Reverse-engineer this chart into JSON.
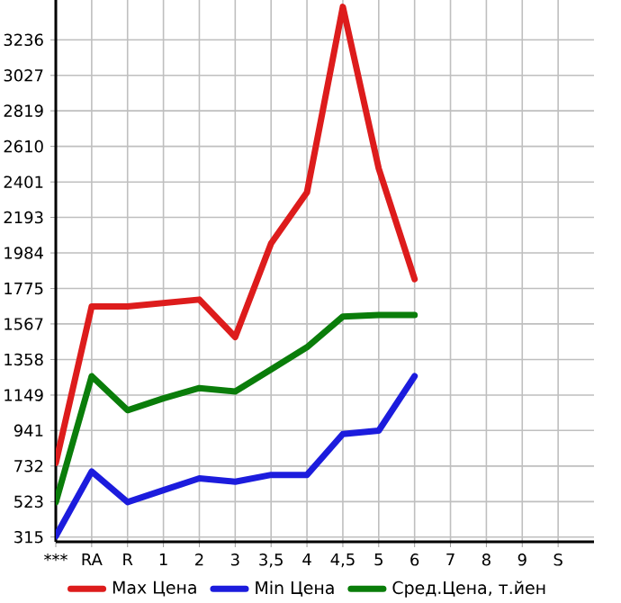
{
  "chart_data": {
    "type": "line",
    "categories": [
      "***",
      "RA",
      "R",
      "1",
      "2",
      "3",
      "3,5",
      "4",
      "4,5",
      "5",
      "6",
      "7",
      "8",
      "9",
      "S"
    ],
    "series": [
      {
        "name": "Max Цена",
        "color": "#dd1c1c",
        "values": [
          750,
          1670,
          1670,
          1690,
          1710,
          1490,
          2040,
          2340,
          3430,
          2480,
          1830,
          null,
          null,
          null,
          null
        ]
      },
      {
        "name": "Min Цена",
        "color": "#1c1cdd",
        "values": [
          320,
          700,
          520,
          590,
          660,
          640,
          680,
          680,
          920,
          940,
          1260,
          null,
          null,
          null,
          null
        ]
      },
      {
        "name": "Сред.Цена, т.йен",
        "color": "#0a7d0a",
        "values": [
          520,
          1260,
          1060,
          1130,
          1190,
          1170,
          1300,
          1430,
          1610,
          1620,
          1620,
          null,
          null,
          null,
          null
        ]
      }
    ],
    "ylim": [
      287,
      3470
    ],
    "yticks": [
      315,
      523,
      732,
      941,
      1149,
      1358,
      1567,
      1775,
      1984,
      2193,
      2401,
      2610,
      2819,
      3027,
      3236
    ],
    "grid": true,
    "legend": "bottom",
    "marker": "none",
    "line_style": "solid"
  }
}
